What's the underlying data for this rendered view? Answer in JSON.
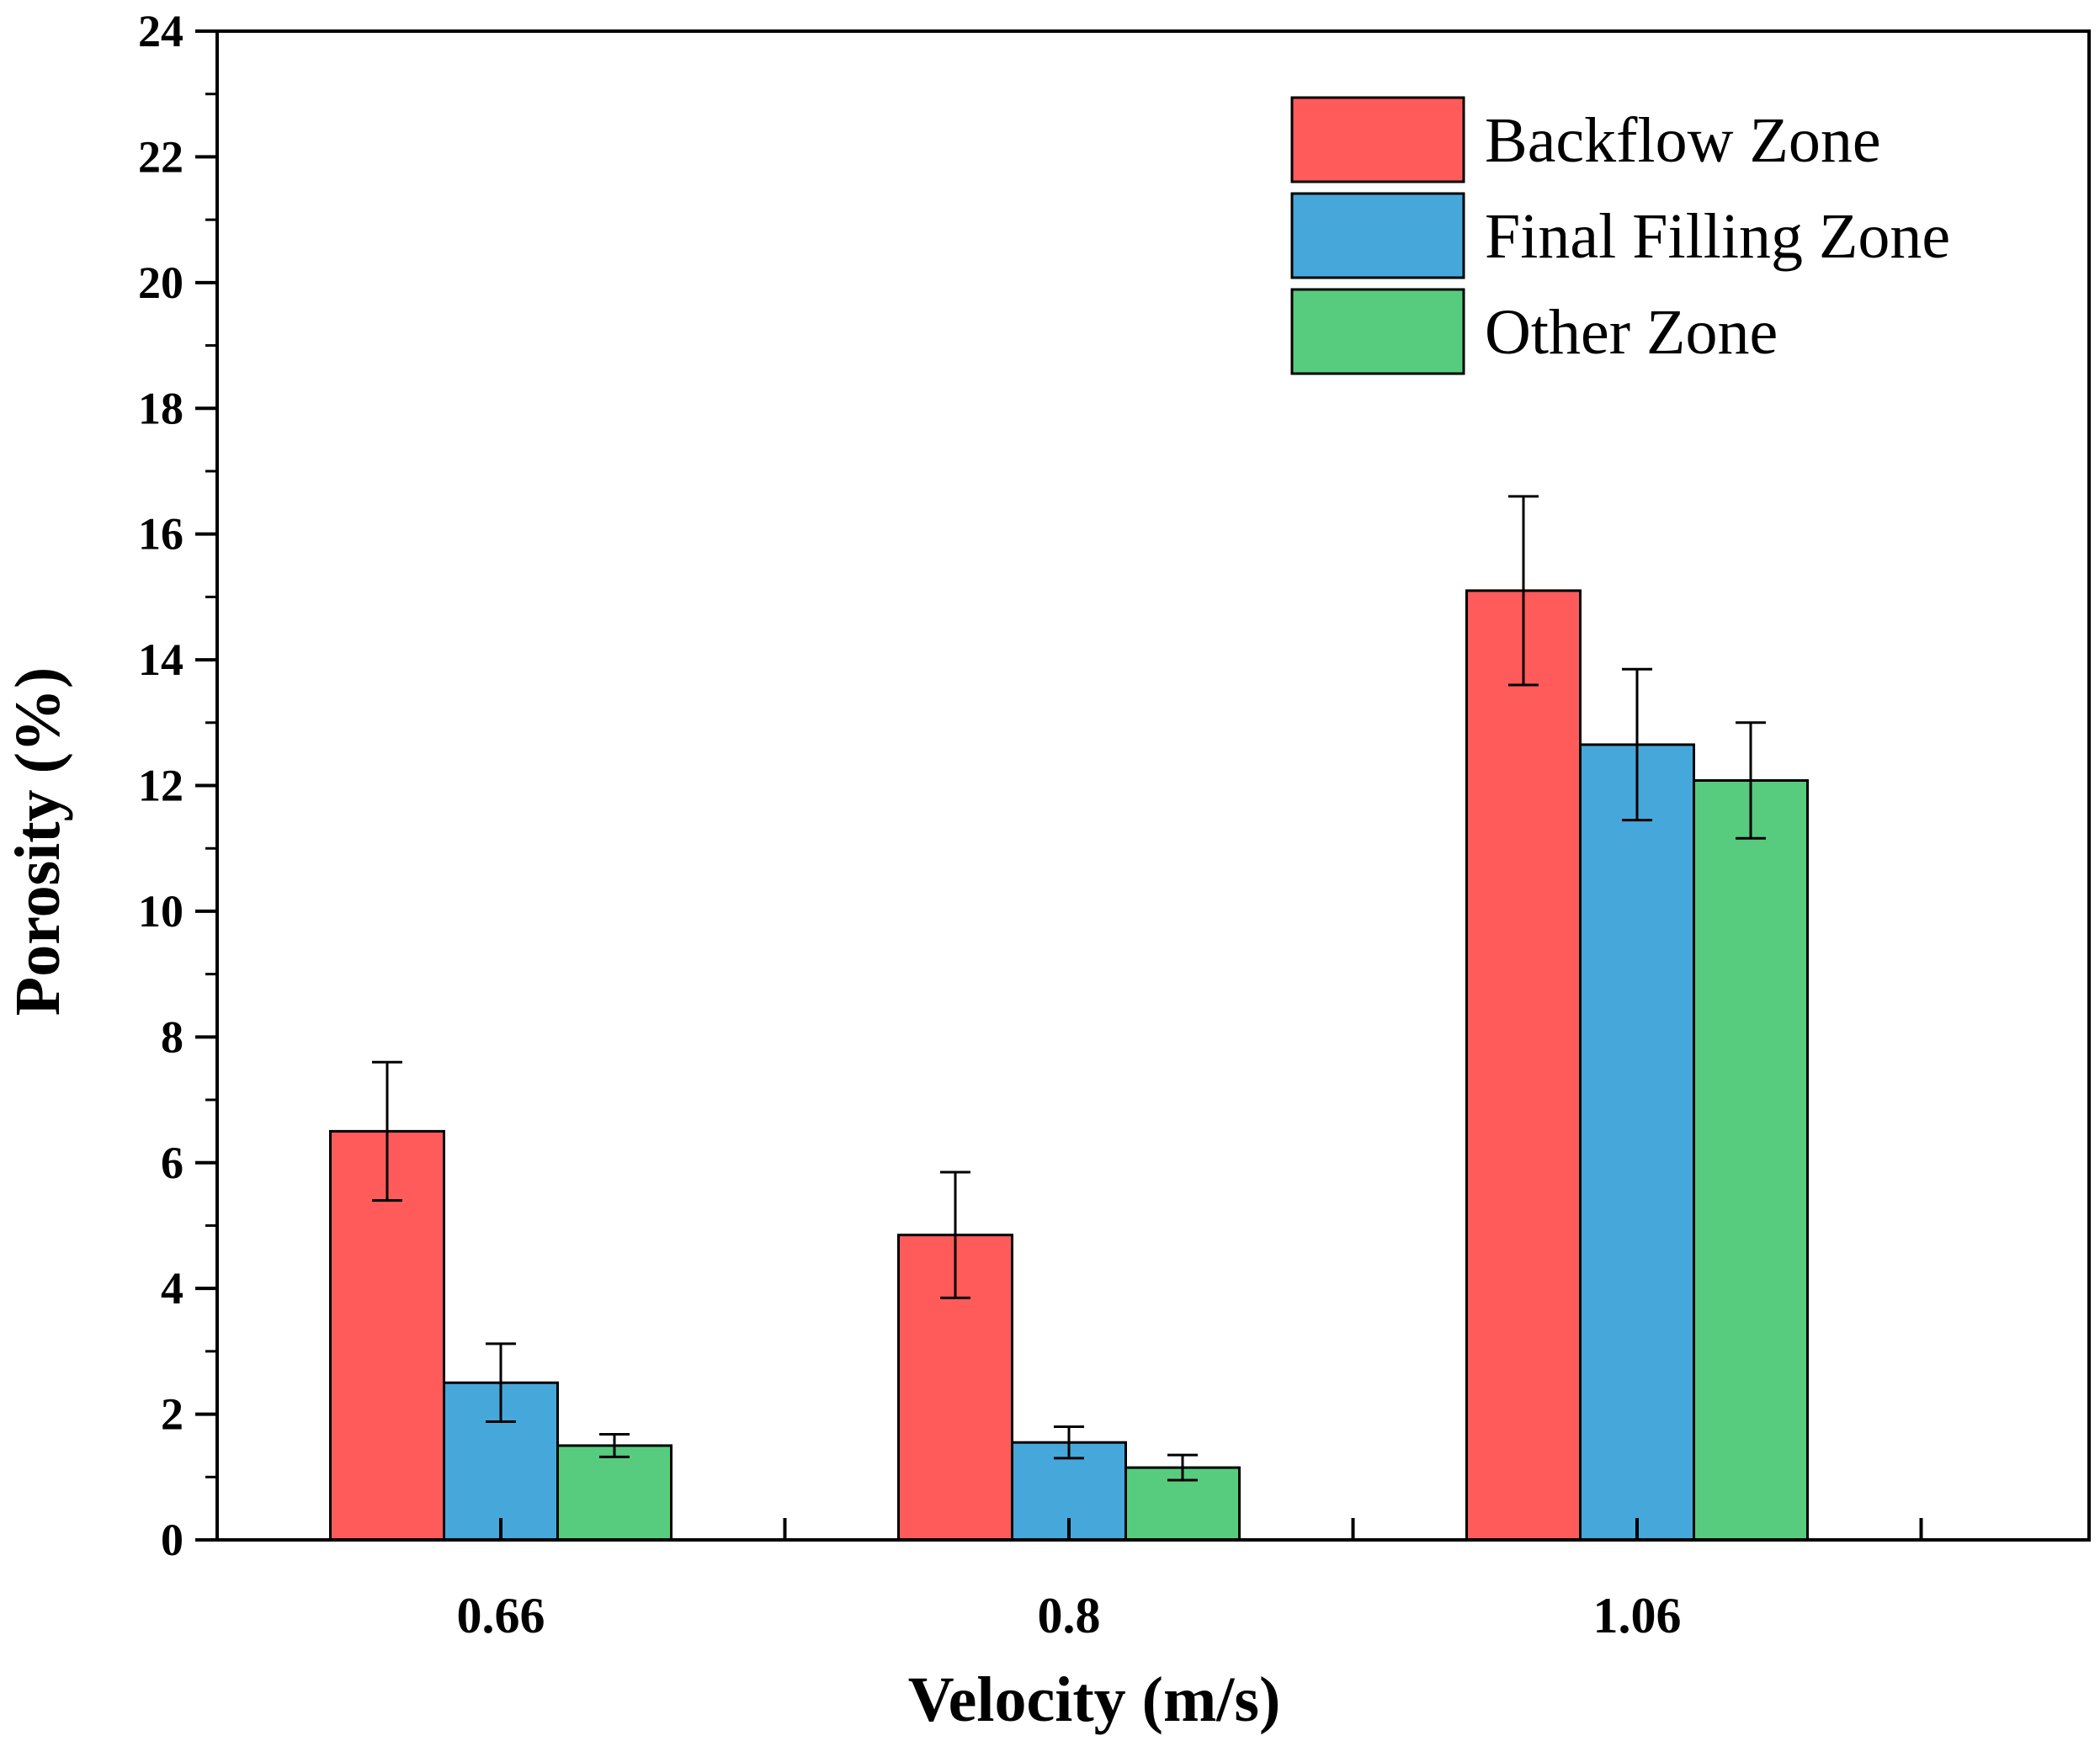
{
  "chart_data": {
    "type": "bar",
    "title": "",
    "xlabel": "Velocity (m/s)",
    "ylabel": "Porosity (%)",
    "ylim": [
      0,
      24
    ],
    "yticks": [
      "0",
      "2",
      "4",
      "6",
      "8",
      "10",
      "12",
      "14",
      "16",
      "18",
      "20",
      "22",
      "24"
    ],
    "categories": [
      "0.66",
      "0.8",
      "1.06"
    ],
    "legend_position": "top-right",
    "grid": false,
    "series": [
      {
        "name": "Backflow Zone",
        "color": "#FF5B5B",
        "values": [
          6.5,
          4.85,
          15.1
        ],
        "errors": [
          1.1,
          1.0,
          1.5
        ]
      },
      {
        "name": "Final Filling Zone",
        "color": "#46A8DA",
        "values": [
          2.5,
          1.55,
          12.65
        ],
        "errors": [
          0.62,
          0.25,
          1.2
        ]
      },
      {
        "name": "Other Zone",
        "color": "#57CC7E",
        "values": [
          1.5,
          1.15,
          12.08
        ],
        "errors": [
          0.18,
          0.2,
          0.92
        ]
      }
    ]
  }
}
